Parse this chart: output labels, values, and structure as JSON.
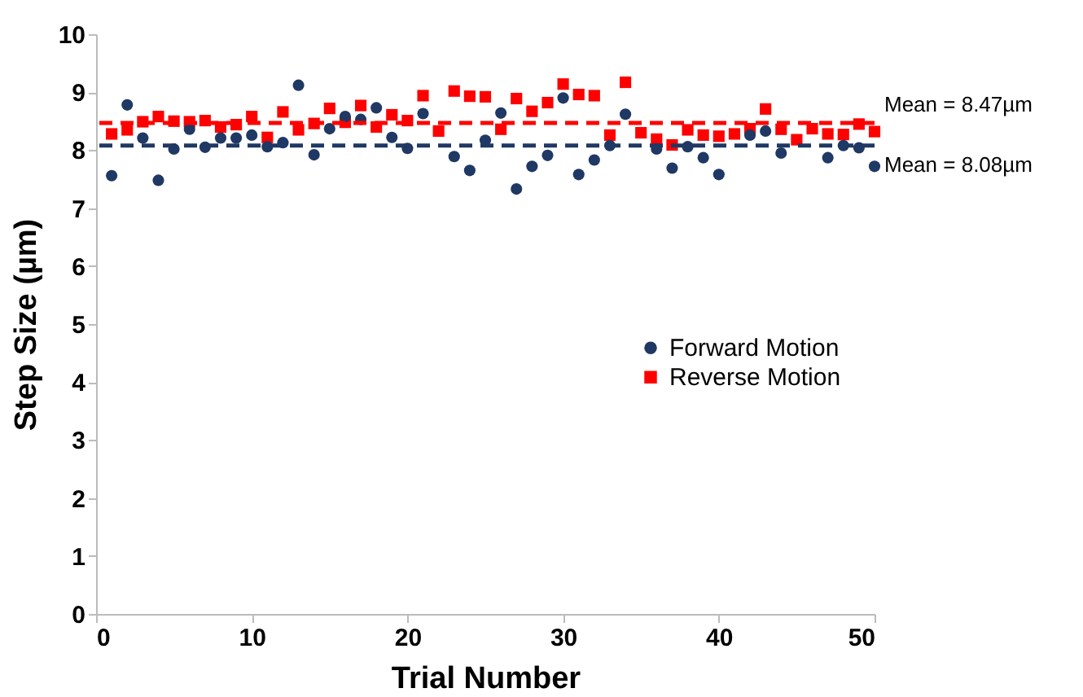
{
  "chart_data": {
    "type": "scatter",
    "xlabel": "Trial Number",
    "ylabel": "Step Size (µm)",
    "x": [
      1,
      2,
      3,
      4,
      5,
      6,
      7,
      8,
      9,
      10,
      11,
      12,
      13,
      14,
      15,
      16,
      17,
      18,
      19,
      20,
      21,
      22,
      23,
      24,
      25,
      26,
      27,
      28,
      29,
      30,
      31,
      32,
      33,
      34,
      35,
      36,
      37,
      38,
      39,
      40,
      41,
      42,
      43,
      44,
      45,
      46,
      47,
      48,
      49,
      50
    ],
    "series": [
      {
        "name": "Forward Motion",
        "color": "#1f3864",
        "marker": "circle",
        "values": [
          7.56,
          8.78,
          8.21,
          7.48,
          8.02,
          8.36,
          8.05,
          8.21,
          8.21,
          8.26,
          8.06,
          8.13,
          9.12,
          7.92,
          8.37,
          8.58,
          8.53,
          8.73,
          8.22,
          8.03,
          8.63,
          null,
          7.89,
          7.65,
          8.17,
          8.64,
          7.33,
          7.72,
          7.91,
          8.9,
          7.58,
          7.83,
          8.08,
          8.62,
          null,
          8.02,
          7.69,
          8.06,
          7.87,
          7.58,
          null,
          8.26,
          8.33,
          7.95,
          null,
          null,
          7.87,
          8.08,
          8.04,
          7.72
        ]
      },
      {
        "name": "Reverse Motion",
        "color": "#ff0000",
        "marker": "square",
        "values": [
          8.28,
          8.35,
          8.49,
          8.58,
          8.5,
          8.49,
          8.51,
          8.4,
          8.44,
          8.58,
          8.22,
          8.66,
          8.35,
          8.46,
          8.72,
          8.48,
          8.77,
          8.4,
          8.61,
          8.51,
          8.94,
          8.33,
          9.02,
          8.93,
          8.92,
          8.36,
          8.89,
          8.67,
          8.82,
          9.14,
          8.96,
          8.94,
          8.26,
          9.17,
          8.3,
          8.19,
          8.09,
          8.35,
          8.26,
          8.24,
          8.28,
          8.37,
          8.71,
          8.36,
          8.18,
          8.37,
          8.28,
          8.27,
          8.45,
          8.32
        ]
      }
    ],
    "ref_lines": [
      {
        "axis": "y",
        "value": 8.47,
        "label": "Mean = 8.47µm",
        "color": "#ff0000",
        "line_style": "dashed"
      },
      {
        "axis": "y",
        "value": 8.08,
        "label": "Mean = 8.08µm",
        "color": "#1f3864",
        "line_style": "dashed"
      }
    ],
    "xlim": [
      0,
      50
    ],
    "xticks": [
      0,
      10,
      20,
      30,
      40,
      50
    ],
    "ylim": [
      0,
      10
    ],
    "yticks": [
      0,
      1,
      2,
      3,
      4,
      5,
      6,
      7,
      8,
      9,
      10
    ],
    "grid": false,
    "legend": "right"
  }
}
